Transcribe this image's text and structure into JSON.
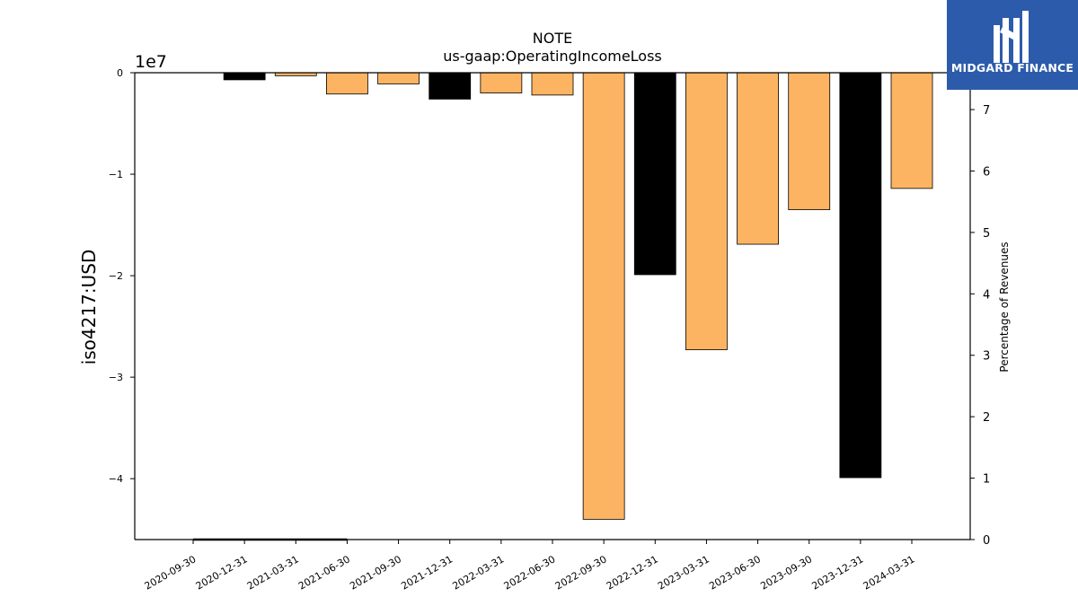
{
  "chart_data": {
    "type": "bar",
    "title": "NOTE",
    "subtitle": "us-gaap:OperatingIncomeLoss",
    "ylabel": "iso4217:USD",
    "ylabel_right": "Percentage of Revenues",
    "y_offset_label": "1e7",
    "ylim": [
      -4.6,
      0
    ],
    "ylim_right": [
      0,
      7.6
    ],
    "y_ticks": [
      0,
      -1,
      -2,
      -3,
      -4
    ],
    "y_tick_labels": [
      "0",
      "−1",
      "−2",
      "−3",
      "−4"
    ],
    "y_right_ticks": [
      0,
      1,
      2,
      3,
      4,
      5,
      6,
      7
    ],
    "y_right_tick_labels": [
      "0",
      "1",
      "2",
      "3",
      "4",
      "5",
      "6",
      "7"
    ],
    "categories": [
      "2020-09-30",
      "2020-12-31",
      "2021-03-31",
      "2021-06-30",
      "2021-09-30",
      "2021-12-31",
      "2022-03-31",
      "2022-06-30",
      "2022-09-30",
      "2022-12-31",
      "2023-03-31",
      "2023-06-30",
      "2023-09-30",
      "2023-12-31",
      "2024-03-31"
    ],
    "values": [
      0,
      -0.07,
      -0.03,
      -0.21,
      -0.11,
      -0.26,
      -0.2,
      -0.22,
      -4.4,
      -1.99,
      -2.73,
      -1.69,
      -1.35,
      -3.99,
      -1.14
    ],
    "bar_colors": [
      "#fdb462",
      "#000000",
      "#fdb462",
      "#fdb462",
      "#fdb462",
      "#000000",
      "#fdb462",
      "#fdb462",
      "#fdb462",
      "#000000",
      "#fdb462",
      "#fdb462",
      "#fdb462",
      "#000000",
      "#fdb462"
    ],
    "percentage_of_revenues": [
      0.0,
      0.0,
      0.0,
      0.0
    ],
    "grid": false,
    "legend": "none"
  },
  "logo": {
    "text": "MIDGARD FINANCE",
    "color": "#2d5bab"
  }
}
